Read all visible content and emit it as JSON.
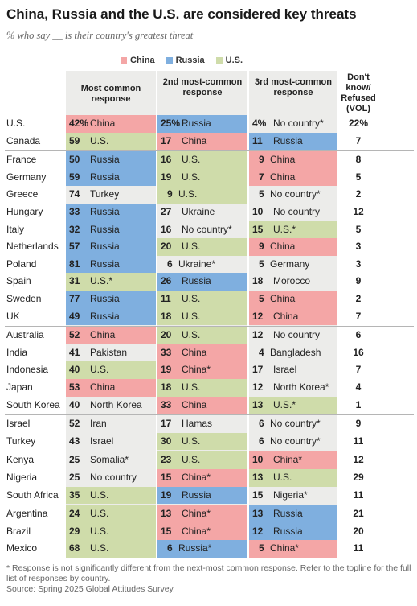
{
  "title": "China, Russia and the U.S. are considered key threats",
  "subtitle": "% who say __ is their country's greatest threat",
  "legend": [
    {
      "name": "China",
      "color": "#f4a6a6"
    },
    {
      "name": "Russia",
      "color": "#7fafdf"
    },
    {
      "name": "U.S.",
      "color": "#cfdcaa"
    }
  ],
  "colors": {
    "China": "#f4a6a6",
    "Russia": "#7fafdf",
    "U.S.": "#cfdcaa"
  },
  "headers": {
    "first": "Most common response",
    "second": "2nd most-common response",
    "third": "3rd most-common response",
    "dk": "Don't know/ Refused (VOL)"
  },
  "chart_data": {
    "type": "table",
    "columns": [
      "Most common response",
      "2nd most-common response",
      "3rd most-common response",
      "Don't know/ Refused (VOL)"
    ],
    "rows": [
      {
        "country": "U.S.",
        "first": {
          "value": "42%",
          "label": "China"
        },
        "second": {
          "value": "25%",
          "label": "Russia"
        },
        "third": {
          "value": "4%",
          "label": "No country*"
        },
        "dk": "22%"
      },
      {
        "country": "Canada",
        "first": {
          "value": "59",
          "label": "U.S."
        },
        "second": {
          "value": "17",
          "label": "China"
        },
        "third": {
          "value": "11",
          "label": "Russia"
        },
        "dk": "7"
      },
      {
        "country": "France",
        "first": {
          "value": "50",
          "label": "Russia"
        },
        "second": {
          "value": "16",
          "label": "U.S."
        },
        "third": {
          "value": "9",
          "label": "China"
        },
        "dk": "8"
      },
      {
        "country": "Germany",
        "first": {
          "value": "59",
          "label": "Russia"
        },
        "second": {
          "value": "19",
          "label": "U.S."
        },
        "third": {
          "value": "7",
          "label": "China"
        },
        "dk": "5"
      },
      {
        "country": "Greece",
        "first": {
          "value": "74",
          "label": "Turkey"
        },
        "second": {
          "value": "9",
          "label": "U.S."
        },
        "third": {
          "value": "5",
          "label": "No country*"
        },
        "dk": "2"
      },
      {
        "country": "Hungary",
        "first": {
          "value": "33",
          "label": "Russia"
        },
        "second": {
          "value": "27",
          "label": "Ukraine"
        },
        "third": {
          "value": "10",
          "label": "No country"
        },
        "dk": "12"
      },
      {
        "country": "Italy",
        "first": {
          "value": "32",
          "label": "Russia"
        },
        "second": {
          "value": "16",
          "label": "No country*"
        },
        "third": {
          "value": "15",
          "label": "U.S.*"
        },
        "dk": "5"
      },
      {
        "country": "Netherlands",
        "first": {
          "value": "57",
          "label": "Russia"
        },
        "second": {
          "value": "20",
          "label": "U.S."
        },
        "third": {
          "value": "9",
          "label": "China"
        },
        "dk": "3"
      },
      {
        "country": "Poland",
        "first": {
          "value": "81",
          "label": "Russia"
        },
        "second": {
          "value": "6",
          "label": "Ukraine*"
        },
        "third": {
          "value": "5",
          "label": "Germany"
        },
        "dk": "3"
      },
      {
        "country": "Spain",
        "first": {
          "value": "31",
          "label": "U.S.*"
        },
        "second": {
          "value": "26",
          "label": "Russia"
        },
        "third": {
          "value": "18",
          "label": "Morocco"
        },
        "dk": "9"
      },
      {
        "country": "Sweden",
        "first": {
          "value": "77",
          "label": "Russia"
        },
        "second": {
          "value": "11",
          "label": "U.S."
        },
        "third": {
          "value": "5",
          "label": "China"
        },
        "dk": "2"
      },
      {
        "country": "UK",
        "first": {
          "value": "49",
          "label": "Russia"
        },
        "second": {
          "value": "18",
          "label": "U.S."
        },
        "third": {
          "value": "12",
          "label": "China"
        },
        "dk": "7"
      },
      {
        "country": "Australia",
        "first": {
          "value": "52",
          "label": "China"
        },
        "second": {
          "value": "20",
          "label": "U.S."
        },
        "third": {
          "value": "12",
          "label": "No country"
        },
        "dk": "6"
      },
      {
        "country": "India",
        "first": {
          "value": "41",
          "label": "Pakistan"
        },
        "second": {
          "value": "33",
          "label": "China"
        },
        "third": {
          "value": "4",
          "label": "Bangladesh"
        },
        "dk": "16"
      },
      {
        "country": "Indonesia",
        "first": {
          "value": "40",
          "label": "U.S."
        },
        "second": {
          "value": "19",
          "label": "China*"
        },
        "third": {
          "value": "17",
          "label": "Israel"
        },
        "dk": "7"
      },
      {
        "country": "Japan",
        "first": {
          "value": "53",
          "label": "China"
        },
        "second": {
          "value": "18",
          "label": "U.S."
        },
        "third": {
          "value": "12",
          "label": "North Korea*"
        },
        "dk": "4"
      },
      {
        "country": "South Korea",
        "first": {
          "value": "40",
          "label": "North Korea"
        },
        "second": {
          "value": "33",
          "label": "China"
        },
        "third": {
          "value": "13",
          "label": "U.S.*"
        },
        "dk": "1"
      },
      {
        "country": "Israel",
        "first": {
          "value": "52",
          "label": "Iran"
        },
        "second": {
          "value": "17",
          "label": "Hamas"
        },
        "third": {
          "value": "6",
          "label": "No country*"
        },
        "dk": "9"
      },
      {
        "country": "Turkey",
        "first": {
          "value": "43",
          "label": "Israel"
        },
        "second": {
          "value": "30",
          "label": "U.S."
        },
        "third": {
          "value": "6",
          "label": "No country*"
        },
        "dk": "11"
      },
      {
        "country": "Kenya",
        "first": {
          "value": "25",
          "label": "Somalia*"
        },
        "second": {
          "value": "23",
          "label": "U.S."
        },
        "third": {
          "value": "10",
          "label": "China*"
        },
        "dk": "12"
      },
      {
        "country": "Nigeria",
        "first": {
          "value": "25",
          "label": "No country"
        },
        "second": {
          "value": "15",
          "label": "China*"
        },
        "third": {
          "value": "13",
          "label": "U.S."
        },
        "dk": "29"
      },
      {
        "country": "South Africa",
        "first": {
          "value": "35",
          "label": "U.S."
        },
        "second": {
          "value": "19",
          "label": "Russia"
        },
        "third": {
          "value": "15",
          "label": "Nigeria*"
        },
        "dk": "11"
      },
      {
        "country": "Argentina",
        "first": {
          "value": "24",
          "label": "U.S."
        },
        "second": {
          "value": "13",
          "label": "China*"
        },
        "third": {
          "value": "13",
          "label": "Russia"
        },
        "dk": "21"
      },
      {
        "country": "Brazil",
        "first": {
          "value": "29",
          "label": "U.S."
        },
        "second": {
          "value": "15",
          "label": "China*"
        },
        "third": {
          "value": "12",
          "label": "Russia"
        },
        "dk": "20"
      },
      {
        "country": "Mexico",
        "first": {
          "value": "68",
          "label": "U.S."
        },
        "second": {
          "value": "6",
          "label": "Russia*"
        },
        "third": {
          "value": "5",
          "label": "China*"
        },
        "dk": "11"
      }
    ],
    "group_breaks_after": [
      "Canada",
      "UK",
      "South Korea",
      "Turkey",
      "South Africa"
    ]
  },
  "footnote": {
    "line1": "* Response is not significantly different from the next-most common response. Refer to the topline for the full list of responses by country.",
    "source": "Source: Spring 2025 Global Attitudes Survey."
  }
}
